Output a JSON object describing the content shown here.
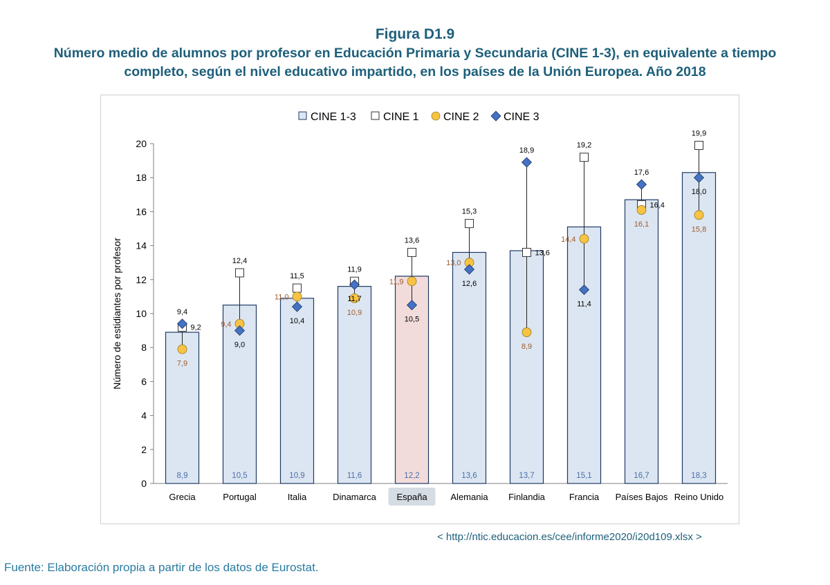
{
  "figure": {
    "label": "Figura D1.9",
    "title": "Número medio de alumnos por profesor en Educación Primaria y Secundaria (CINE 1-3), en equivalente a tiempo completo, según el nivel educativo impartido, en los países de la Unión Europea. Año 2018",
    "link": "< http://ntic.educacion.es/cee/informe2020/i20d109.xlsx >",
    "source": "Fuente: Elaboración propia a partir de los datos de Eurostat."
  },
  "colors": {
    "bar_fill": "#dce6f2",
    "bar_highlight_fill": "#f2dcdb",
    "bar_stroke": "#1f3864",
    "cine2_fill": "#f7c343",
    "cine3_fill": "#4472c4",
    "title": "#1d5f7a",
    "bar_label": "#4a6ea9",
    "cine2_label": "#9b5a2e"
  },
  "chart_data": {
    "type": "bar",
    "ylabel": "Número de estidiantes  por profesor",
    "ylim": [
      0,
      20
    ],
    "yticks": [
      "0",
      "2",
      "4",
      "6",
      "8",
      "10",
      "12",
      "14",
      "16",
      "18",
      "20"
    ],
    "highlight_category": "España",
    "categories": [
      "Grecia",
      "Portugal",
      "Italia",
      "Dinamarca",
      "España",
      "Alemania",
      "Finlandia",
      "Francia",
      "Países Bajos",
      "Reino Unido"
    ],
    "series": [
      {
        "name": "CINE 1-3",
        "marker": "bar",
        "values": [
          8.9,
          10.5,
          10.9,
          11.6,
          12.2,
          13.6,
          13.7,
          15.1,
          16.7,
          18.3
        ],
        "labels": [
          "8,9",
          "10,5",
          "10,9",
          "11,6",
          "12,2",
          "13,6",
          "13,7",
          "15,1",
          "16,7",
          "18,3"
        ]
      },
      {
        "name": "CINE 1",
        "marker": "square",
        "values": [
          9.2,
          12.4,
          11.5,
          11.9,
          13.6,
          15.3,
          13.6,
          19.2,
          16.4,
          19.9
        ],
        "labels": [
          "9,2",
          "12,4",
          "11,5",
          "11,9",
          "13,6",
          "15,3",
          "13,6",
          "19,2",
          "16,4",
          "19,9"
        ]
      },
      {
        "name": "CINE 2",
        "marker": "circle",
        "values": [
          7.9,
          9.4,
          11.0,
          10.9,
          11.9,
          13.0,
          8.9,
          14.4,
          16.1,
          15.8
        ],
        "labels": [
          "7,9",
          "9,4",
          "11,0",
          "10,9",
          "11,9",
          "13,0",
          "8,9",
          "14,4",
          "16,1",
          "15,8"
        ]
      },
      {
        "name": "CINE 3",
        "marker": "diamond",
        "values": [
          9.4,
          9.0,
          10.4,
          11.7,
          10.5,
          12.6,
          18.9,
          11.4,
          17.6,
          18.0
        ],
        "labels": [
          "9,4",
          "9,0",
          "10,4",
          "11,7",
          "10,5",
          "12,6",
          "18,9",
          "11,4",
          "17,6",
          "18,0"
        ]
      }
    ]
  }
}
